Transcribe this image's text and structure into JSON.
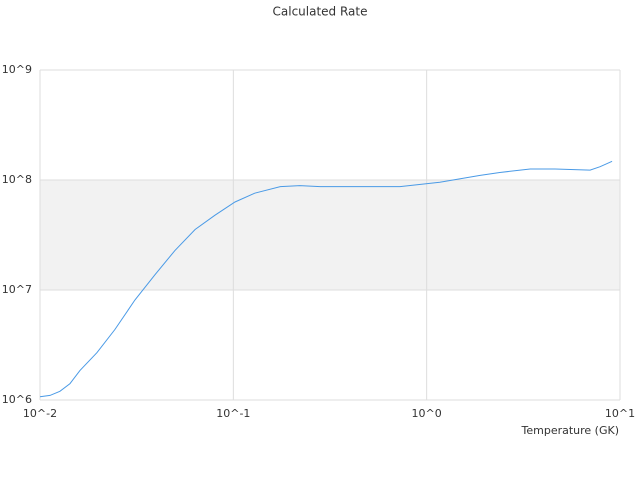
{
  "chart_data": {
    "type": "line",
    "title": "Calculated Rate",
    "x_label": "Temperature (GK)",
    "x": [
      0.01,
      0.01127,
      0.01268,
      0.01429,
      0.0161,
      0.0197,
      0.0244,
      0.031,
      0.0394,
      0.0499,
      0.0634,
      0.0804,
      0.102,
      0.129,
      0.175,
      0.221,
      0.281,
      0.728,
      1.17,
      1.89,
      2.39,
      3.43,
      4.61,
      7.0,
      7.89,
      9.1
    ],
    "series": [
      {
        "color": "#4a9ae6",
        "values": [
          1070000,
          1100000,
          1200000,
          1410000,
          1860000,
          2690000,
          4370000,
          8130000,
          13800000,
          22900000,
          35500000,
          47900000,
          63100000,
          75900000,
          87100000,
          89000000,
          87100000,
          87100000,
          95500000,
          110000000,
          117000000,
          126000000,
          126000000,
          123000000,
          132000000,
          148000000
        ]
      }
    ],
    "xscale": "log",
    "yscale": "log",
    "xlim": [
      0.01,
      10
    ],
    "ylim": [
      1000000,
      1000000000
    ],
    "xticks": [
      {
        "value": 0.01,
        "label": "10^-2"
      },
      {
        "value": 0.1,
        "label": "10^-1"
      },
      {
        "value": 1,
        "label": "10^0"
      },
      {
        "value": 10,
        "label": "10^1"
      }
    ],
    "yticks": [
      {
        "value": 1000000,
        "label": "10^6"
      },
      {
        "value": 10000000,
        "label": "10^7"
      },
      {
        "value": 100000000,
        "label": "10^8"
      },
      {
        "value": 1000000000,
        "label": "10^9"
      }
    ],
    "grid": true,
    "bands": true
  }
}
